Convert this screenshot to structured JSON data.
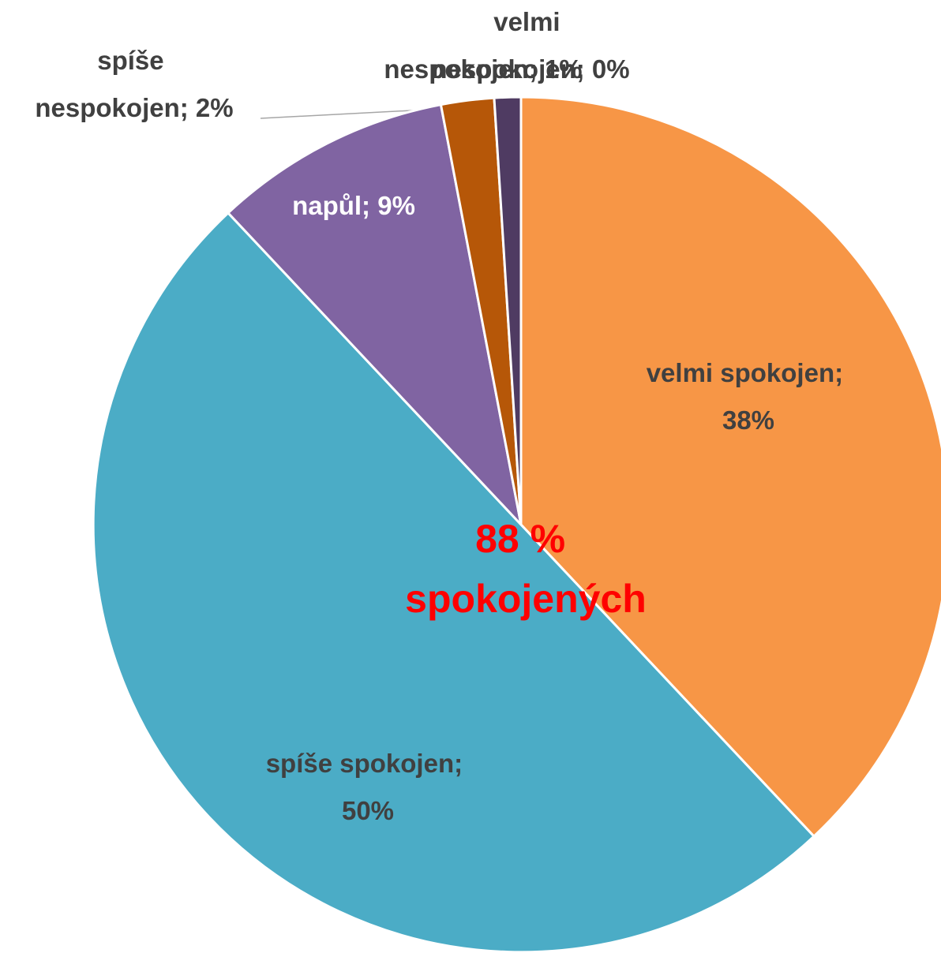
{
  "chart_data": {
    "type": "pie",
    "categories": [
      "velmi spokojen",
      "spíše spokojen",
      "napůl",
      "spíše nespokojen",
      "nespokojen",
      "velmi nespokojen"
    ],
    "values": [
      38,
      50,
      9,
      2,
      1,
      0
    ],
    "value_labels": [
      "velmi spokojen; 38%",
      "spíše spokojen; 50%",
      "napůl; 9%",
      "spíše nespokojen; 2%",
      "nespokojen; 1%",
      "velmi nespokojen; 0%"
    ],
    "colors": [
      "#F79646",
      "#4BACC6",
      "#8064A2",
      "#B65708",
      "#4F3B62",
      "#7F3F3F"
    ],
    "annotation": "88 % spokojených",
    "annotation_color": "#FF0000"
  }
}
